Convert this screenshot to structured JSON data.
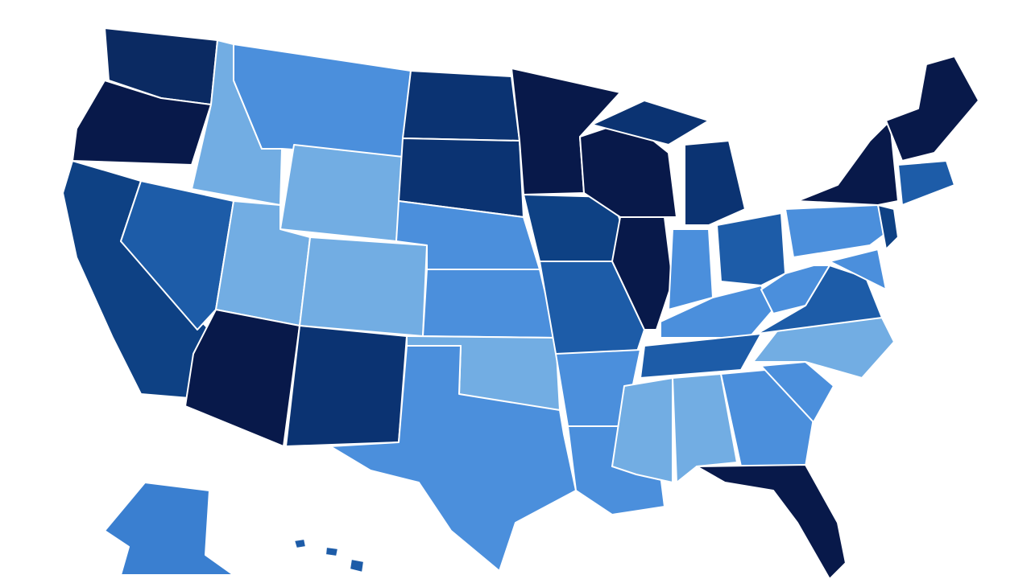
{
  "map": {
    "background": "#ffffff",
    "border_color": "#ffffff",
    "region_colors": [
      "#0b2a62",
      "#08194a",
      "#0e4184",
      "#1d5ca8",
      "#72ade3",
      "#4b8fdc",
      "#72ade3",
      "#72ade3",
      "#72ade3",
      "#08194a",
      "#0b3372",
      "#0b3372",
      "#0b3372",
      "#4b8fdc",
      "#4b8fdc",
      "#72ade3",
      "#4b8fdc",
      "#08194a",
      "#0e4184",
      "#1d5ca8",
      "#4b8fdc",
      "#4b8fdc",
      "#08194a",
      "#08194a",
      "#0b3372",
      "#0b3372",
      "#4b8fdc",
      "#1d5ca8",
      "#4b8fdc",
      "#1d5ca8",
      "#72ade3",
      "#72ade3",
      "#4b8fdc",
      "#08194a",
      "#4b8fdc",
      "#72ade3",
      "#1d5ca8",
      "#4b8fdc",
      "#4b8fdc",
      "#08194a",
      "#0e4184",
      "#4b8fdc",
      "#08194a",
      "#1d5ca8",
      "#3a7fd0",
      "#1d5ca8",
      "#1d5ca8",
      "#1d5ca8"
    ]
  }
}
